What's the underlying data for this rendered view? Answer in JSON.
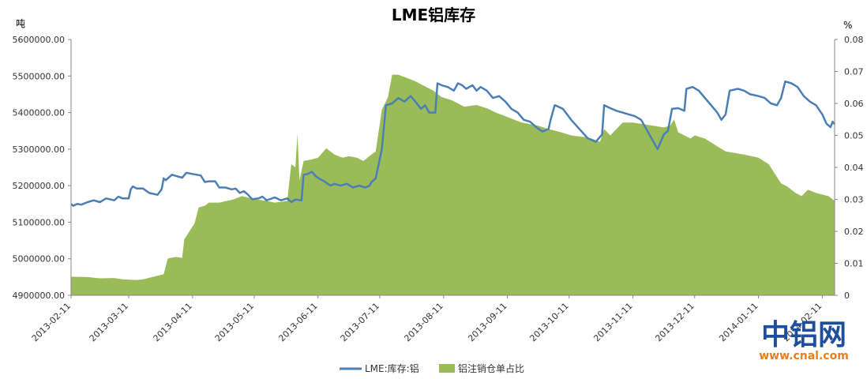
{
  "chart_data": {
    "type": "line+area",
    "title": "LME铝库存",
    "y_left_label": "吨",
    "y_right_label": "%",
    "y_left": {
      "min": 4900000,
      "max": 5600000,
      "ticks": [
        "4900000.00",
        "5000000.00",
        "5100000.00",
        "5200000.00",
        "5300000.00",
        "5400000.00",
        "5500000.00",
        "5600000.00"
      ]
    },
    "y_right": {
      "min": 0,
      "max": 0.08,
      "ticks": [
        "0",
        "0.01",
        "0.02",
        "0.03",
        "0.04",
        "0.05",
        "0.06",
        "0.07",
        "0.08"
      ]
    },
    "x_ticks": [
      "2013-02-11",
      "2013-03-11",
      "2013-04-11",
      "2013-05-11",
      "2013-06-11",
      "2013-07-11",
      "2013-08-11",
      "2013-09-11",
      "2013-10-11",
      "2013-11-11",
      "2013-12-11",
      "2014-01-11",
      "2014-02-11"
    ],
    "x_start": "2013-02-11",
    "x_end": "2014-02-17",
    "grid": false,
    "legend_position": "bottom",
    "series": [
      {
        "name": "LME:库存:铝",
        "kind": "line",
        "axis": "left",
        "color": "#4a7eb5",
        "points": [
          [
            "2013-02-11",
            5150000
          ],
          [
            "2013-02-12",
            5145000
          ],
          [
            "2013-02-14",
            5150000
          ],
          [
            "2013-02-16",
            5148000
          ],
          [
            "2013-02-19",
            5155000
          ],
          [
            "2013-02-22",
            5160000
          ],
          [
            "2013-02-25",
            5155000
          ],
          [
            "2013-02-28",
            5165000
          ],
          [
            "2013-03-04",
            5160000
          ],
          [
            "2013-03-06",
            5170000
          ],
          [
            "2013-03-08",
            5165000
          ],
          [
            "2013-03-11",
            5165000
          ],
          [
            "2013-03-12",
            5190000
          ],
          [
            "2013-03-13",
            5198000
          ],
          [
            "2013-03-15",
            5192000
          ],
          [
            "2013-03-18",
            5192000
          ],
          [
            "2013-03-21",
            5180000
          ],
          [
            "2013-03-25",
            5175000
          ],
          [
            "2013-03-27",
            5190000
          ],
          [
            "2013-03-28",
            5220000
          ],
          [
            "2013-03-29",
            5215000
          ],
          [
            "2013-04-01",
            5230000
          ],
          [
            "2013-04-04",
            5225000
          ],
          [
            "2013-04-06",
            5222000
          ],
          [
            "2013-04-08",
            5235000
          ],
          [
            "2013-04-11",
            5232000
          ],
          [
            "2013-04-15",
            5228000
          ],
          [
            "2013-04-17",
            5210000
          ],
          [
            "2013-04-19",
            5212000
          ],
          [
            "2013-04-22",
            5212000
          ],
          [
            "2013-04-24",
            5195000
          ],
          [
            "2013-04-27",
            5195000
          ],
          [
            "2013-04-30",
            5190000
          ],
          [
            "2013-05-02",
            5192000
          ],
          [
            "2013-05-04",
            5180000
          ],
          [
            "2013-05-06",
            5185000
          ],
          [
            "2013-05-08",
            5175000
          ],
          [
            "2013-05-10",
            5163000
          ],
          [
            "2013-05-13",
            5165000
          ],
          [
            "2013-05-15",
            5170000
          ],
          [
            "2013-05-17",
            5160000
          ],
          [
            "2013-05-21",
            5168000
          ],
          [
            "2013-05-24",
            5160000
          ],
          [
            "2013-05-27",
            5165000
          ],
          [
            "2013-05-29",
            5155000
          ],
          [
            "2013-05-31",
            5162000
          ],
          [
            "2013-06-03",
            5160000
          ],
          [
            "2013-06-04",
            5230000
          ],
          [
            "2013-06-06",
            5232000
          ],
          [
            "2013-06-08",
            5238000
          ],
          [
            "2013-06-10",
            5225000
          ],
          [
            "2013-06-12",
            5218000
          ],
          [
            "2013-06-14",
            5212000
          ],
          [
            "2013-06-17",
            5200000
          ],
          [
            "2013-06-19",
            5205000
          ],
          [
            "2013-06-22",
            5200000
          ],
          [
            "2013-06-25",
            5205000
          ],
          [
            "2013-06-28",
            5195000
          ],
          [
            "2013-07-01",
            5200000
          ],
          [
            "2013-07-04",
            5195000
          ],
          [
            "2013-07-06",
            5200000
          ],
          [
            "2013-07-07",
            5210000
          ],
          [
            "2013-07-09",
            5220000
          ],
          [
            "2013-07-12",
            5300000
          ],
          [
            "2013-07-14",
            5420000
          ],
          [
            "2013-07-17",
            5425000
          ],
          [
            "2013-07-20",
            5440000
          ],
          [
            "2013-07-23",
            5430000
          ],
          [
            "2013-07-26",
            5445000
          ],
          [
            "2013-07-29",
            5425000
          ],
          [
            "2013-07-31",
            5410000
          ],
          [
            "2013-08-02",
            5420000
          ],
          [
            "2013-08-04",
            5400000
          ],
          [
            "2013-08-07",
            5400000
          ],
          [
            "2013-08-08",
            5480000
          ],
          [
            "2013-08-10",
            5475000
          ],
          [
            "2013-08-13",
            5470000
          ],
          [
            "2013-08-16",
            5460000
          ],
          [
            "2013-08-18",
            5480000
          ],
          [
            "2013-08-20",
            5475000
          ],
          [
            "2013-08-22",
            5465000
          ],
          [
            "2013-08-25",
            5475000
          ],
          [
            "2013-08-27",
            5460000
          ],
          [
            "2013-08-29",
            5470000
          ],
          [
            "2013-09-01",
            5460000
          ],
          [
            "2013-09-04",
            5440000
          ],
          [
            "2013-09-07",
            5445000
          ],
          [
            "2013-09-10",
            5430000
          ],
          [
            "2013-09-13",
            5410000
          ],
          [
            "2013-09-16",
            5400000
          ],
          [
            "2013-09-19",
            5380000
          ],
          [
            "2013-09-22",
            5375000
          ],
          [
            "2013-09-25",
            5360000
          ],
          [
            "2013-09-28",
            5348000
          ],
          [
            "2013-10-01",
            5355000
          ],
          [
            "2013-10-02",
            5380000
          ],
          [
            "2013-10-04",
            5420000
          ],
          [
            "2013-10-05",
            5418000
          ],
          [
            "2013-10-08",
            5410000
          ],
          [
            "2013-10-12",
            5380000
          ],
          [
            "2013-10-16",
            5355000
          ],
          [
            "2013-10-20",
            5330000
          ],
          [
            "2013-10-24",
            5320000
          ],
          [
            "2013-10-27",
            5340000
          ],
          [
            "2013-10-28",
            5420000
          ],
          [
            "2013-10-31",
            5412000
          ],
          [
            "2013-11-03",
            5405000
          ],
          [
            "2013-11-06",
            5400000
          ],
          [
            "2013-11-09",
            5395000
          ],
          [
            "2013-11-12",
            5390000
          ],
          [
            "2013-11-15",
            5380000
          ],
          [
            "2013-11-18",
            5350000
          ],
          [
            "2013-11-21",
            5320000
          ],
          [
            "2013-11-23",
            5300000
          ],
          [
            "2013-11-26",
            5340000
          ],
          [
            "2013-11-28",
            5350000
          ],
          [
            "2013-11-30",
            5410000
          ],
          [
            "2013-12-03",
            5412000
          ],
          [
            "2013-12-06",
            5405000
          ],
          [
            "2013-12-07",
            5465000
          ],
          [
            "2013-12-10",
            5470000
          ],
          [
            "2013-12-13",
            5460000
          ],
          [
            "2013-12-16",
            5440000
          ],
          [
            "2013-12-19",
            5420000
          ],
          [
            "2013-12-22",
            5400000
          ],
          [
            "2013-12-24",
            5380000
          ],
          [
            "2013-12-26",
            5395000
          ],
          [
            "2013-12-28",
            5460000
          ],
          [
            "2014-01-01",
            5465000
          ],
          [
            "2014-01-04",
            5460000
          ],
          [
            "2014-01-07",
            5450000
          ],
          [
            "2014-01-11",
            5445000
          ],
          [
            "2014-01-14",
            5440000
          ],
          [
            "2014-01-17",
            5425000
          ],
          [
            "2014-01-20",
            5420000
          ],
          [
            "2014-01-22",
            5440000
          ],
          [
            "2014-01-24",
            5485000
          ],
          [
            "2014-01-27",
            5480000
          ],
          [
            "2014-01-30",
            5470000
          ],
          [
            "2014-02-02",
            5445000
          ],
          [
            "2014-02-05",
            5430000
          ],
          [
            "2014-02-08",
            5420000
          ],
          [
            "2014-02-11",
            5395000
          ],
          [
            "2014-02-13",
            5370000
          ],
          [
            "2014-02-15",
            5360000
          ],
          [
            "2014-02-16",
            5375000
          ],
          [
            "2014-02-17",
            5368000
          ]
        ]
      },
      {
        "name": "铝注销仓单占比",
        "kind": "area",
        "axis": "right",
        "color": "#9bbb59",
        "points": [
          [
            "2013-02-11",
            0.0058
          ],
          [
            "2013-02-19",
            0.0057
          ],
          [
            "2013-02-25",
            0.0053
          ],
          [
            "2013-03-04",
            0.0054
          ],
          [
            "2013-03-08",
            0.005
          ],
          [
            "2013-03-15",
            0.0048
          ],
          [
            "2013-03-18",
            0.005
          ],
          [
            "2013-03-25",
            0.0061
          ],
          [
            "2013-03-28",
            0.0066
          ],
          [
            "2013-03-30",
            0.0115
          ],
          [
            "2013-04-03",
            0.012
          ],
          [
            "2013-04-06",
            0.0117
          ],
          [
            "2013-04-07",
            0.0175
          ],
          [
            "2013-04-12",
            0.0225
          ],
          [
            "2013-04-14",
            0.0275
          ],
          [
            "2013-04-17",
            0.028
          ],
          [
            "2013-04-19",
            0.029
          ],
          [
            "2013-04-24",
            0.029
          ],
          [
            "2013-05-01",
            0.03
          ],
          [
            "2013-05-05",
            0.031
          ],
          [
            "2013-05-12",
            0.03
          ],
          [
            "2013-05-17",
            0.0295
          ],
          [
            "2013-05-21",
            0.029
          ],
          [
            "2013-05-27",
            0.0295
          ],
          [
            "2013-05-29",
            0.041
          ],
          [
            "2013-05-31",
            0.04
          ],
          [
            "2013-06-01",
            0.0505
          ],
          [
            "2013-06-02",
            0.036
          ],
          [
            "2013-06-04",
            0.042
          ],
          [
            "2013-06-08",
            0.0425
          ],
          [
            "2013-06-11",
            0.043
          ],
          [
            "2013-06-15",
            0.046
          ],
          [
            "2013-06-19",
            0.044
          ],
          [
            "2013-06-23",
            0.043
          ],
          [
            "2013-06-26",
            0.0435
          ],
          [
            "2013-06-30",
            0.043
          ],
          [
            "2013-07-03",
            0.042
          ],
          [
            "2013-07-06",
            0.0435
          ],
          [
            "2013-07-09",
            0.045
          ],
          [
            "2013-07-12",
            0.058
          ],
          [
            "2013-07-15",
            0.062
          ],
          [
            "2013-07-17",
            0.069
          ],
          [
            "2013-07-20",
            0.069
          ],
          [
            "2013-07-24",
            0.068
          ],
          [
            "2013-07-28",
            0.067
          ],
          [
            "2013-08-03",
            0.065
          ],
          [
            "2013-08-06",
            0.064
          ],
          [
            "2013-08-10",
            0.062
          ],
          [
            "2013-08-15",
            0.061
          ],
          [
            "2013-08-21",
            0.059
          ],
          [
            "2013-08-27",
            0.0595
          ],
          [
            "2013-09-01",
            0.0585
          ],
          [
            "2013-09-06",
            0.057
          ],
          [
            "2013-09-12",
            0.0555
          ],
          [
            "2013-09-18",
            0.054
          ],
          [
            "2013-09-22",
            0.0535
          ],
          [
            "2013-09-26",
            0.053
          ],
          [
            "2013-10-01",
            0.052
          ],
          [
            "2013-10-07",
            0.051
          ],
          [
            "2013-10-12",
            0.05
          ],
          [
            "2013-10-18",
            0.0495
          ],
          [
            "2013-10-22",
            0.049
          ],
          [
            "2013-10-26",
            0.048
          ],
          [
            "2013-10-28",
            0.052
          ],
          [
            "2013-10-31",
            0.05
          ],
          [
            "2013-11-03",
            0.052
          ],
          [
            "2013-11-06",
            0.054
          ],
          [
            "2013-11-11",
            0.054
          ],
          [
            "2013-11-16",
            0.0535
          ],
          [
            "2013-11-21",
            0.053
          ],
          [
            "2013-11-26",
            0.0525
          ],
          [
            "2013-11-29",
            0.053
          ],
          [
            "2013-12-01",
            0.055
          ],
          [
            "2013-12-03",
            0.051
          ],
          [
            "2013-12-06",
            0.05
          ],
          [
            "2013-12-09",
            0.049
          ],
          [
            "2013-12-11",
            0.05
          ],
          [
            "2013-12-16",
            0.049
          ],
          [
            "2013-12-21",
            0.047
          ],
          [
            "2013-12-26",
            0.045
          ],
          [
            "2014-01-04",
            0.044
          ],
          [
            "2014-01-11",
            0.043
          ],
          [
            "2014-01-16",
            0.041
          ],
          [
            "2014-01-19",
            0.038
          ],
          [
            "2014-01-22",
            0.035
          ],
          [
            "2014-01-25",
            0.034
          ],
          [
            "2014-01-29",
            0.032
          ],
          [
            "2014-02-01",
            0.031
          ],
          [
            "2014-02-04",
            0.033
          ],
          [
            "2014-02-08",
            0.032
          ],
          [
            "2014-02-11",
            0.0315
          ],
          [
            "2014-02-14",
            0.031
          ],
          [
            "2014-02-17",
            0.0295
          ]
        ]
      }
    ]
  },
  "watermark": {
    "main": "中铝网",
    "sub": "www.cnal.com",
    "main_color": "#1f4f9c",
    "sub_color": "#e67e22"
  }
}
